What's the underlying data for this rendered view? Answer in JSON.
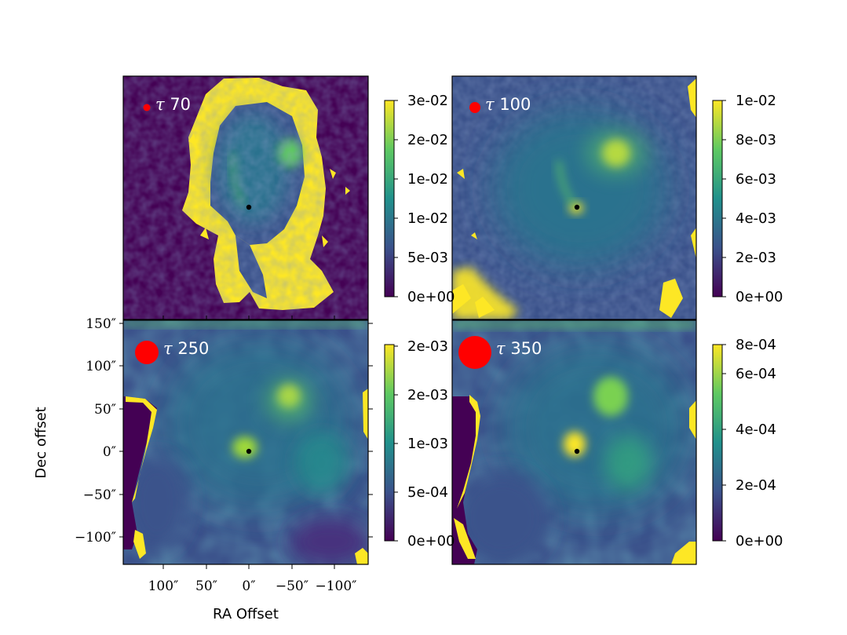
{
  "figure": {
    "xlabel": "RA Offset",
    "ylabel": "Dec offset",
    "colormap": "viridis",
    "colors": {
      "low": "#440154",
      "mid": "#21918c",
      "high": "#fde725",
      "marker": "#ff0000",
      "center": "#000000"
    }
  },
  "chart_data": [
    {
      "type": "heatmap",
      "panel": "top-left",
      "tau_symbol": "τ",
      "tau_value": "70",
      "colorbar": {
        "min": 0,
        "max": 0.03,
        "ticks": [
          "0e+00",
          "5e-03",
          "1e-02",
          "1e-02",
          "2e-02",
          "3e-02"
        ]
      },
      "x_ticks": [],
      "y_ticks": []
    },
    {
      "type": "heatmap",
      "panel": "top-right",
      "tau_symbol": "τ",
      "tau_value": "100",
      "colorbar": {
        "min": 0,
        "max": 0.01,
        "ticks": [
          "0e+00",
          "2e-03",
          "4e-03",
          "6e-03",
          "8e-03",
          "1e-02"
        ]
      },
      "x_ticks": [],
      "y_ticks": []
    },
    {
      "type": "heatmap",
      "panel": "bottom-left",
      "tau_symbol": "τ",
      "tau_value": "250",
      "colorbar": {
        "min": 0,
        "max": 0.002,
        "ticks": [
          "0e+00",
          "5e-04",
          "1e-03",
          "2e-03",
          "2e-03"
        ]
      },
      "x_ticks": [
        "100″",
        "50″",
        "0″",
        "−50″",
        "−100″"
      ],
      "y_ticks": [
        "150″",
        "100″",
        "50″",
        "0″",
        "−50″",
        "−100″"
      ]
    },
    {
      "type": "heatmap",
      "panel": "bottom-right",
      "tau_symbol": "τ",
      "tau_value": "350",
      "colorbar": {
        "min": 0,
        "max": 0.0008,
        "ticks": [
          "0e+00",
          "2e-04",
          "4e-04",
          "6e-04",
          "8e-04"
        ]
      },
      "x_ticks": [],
      "y_ticks": []
    }
  ]
}
